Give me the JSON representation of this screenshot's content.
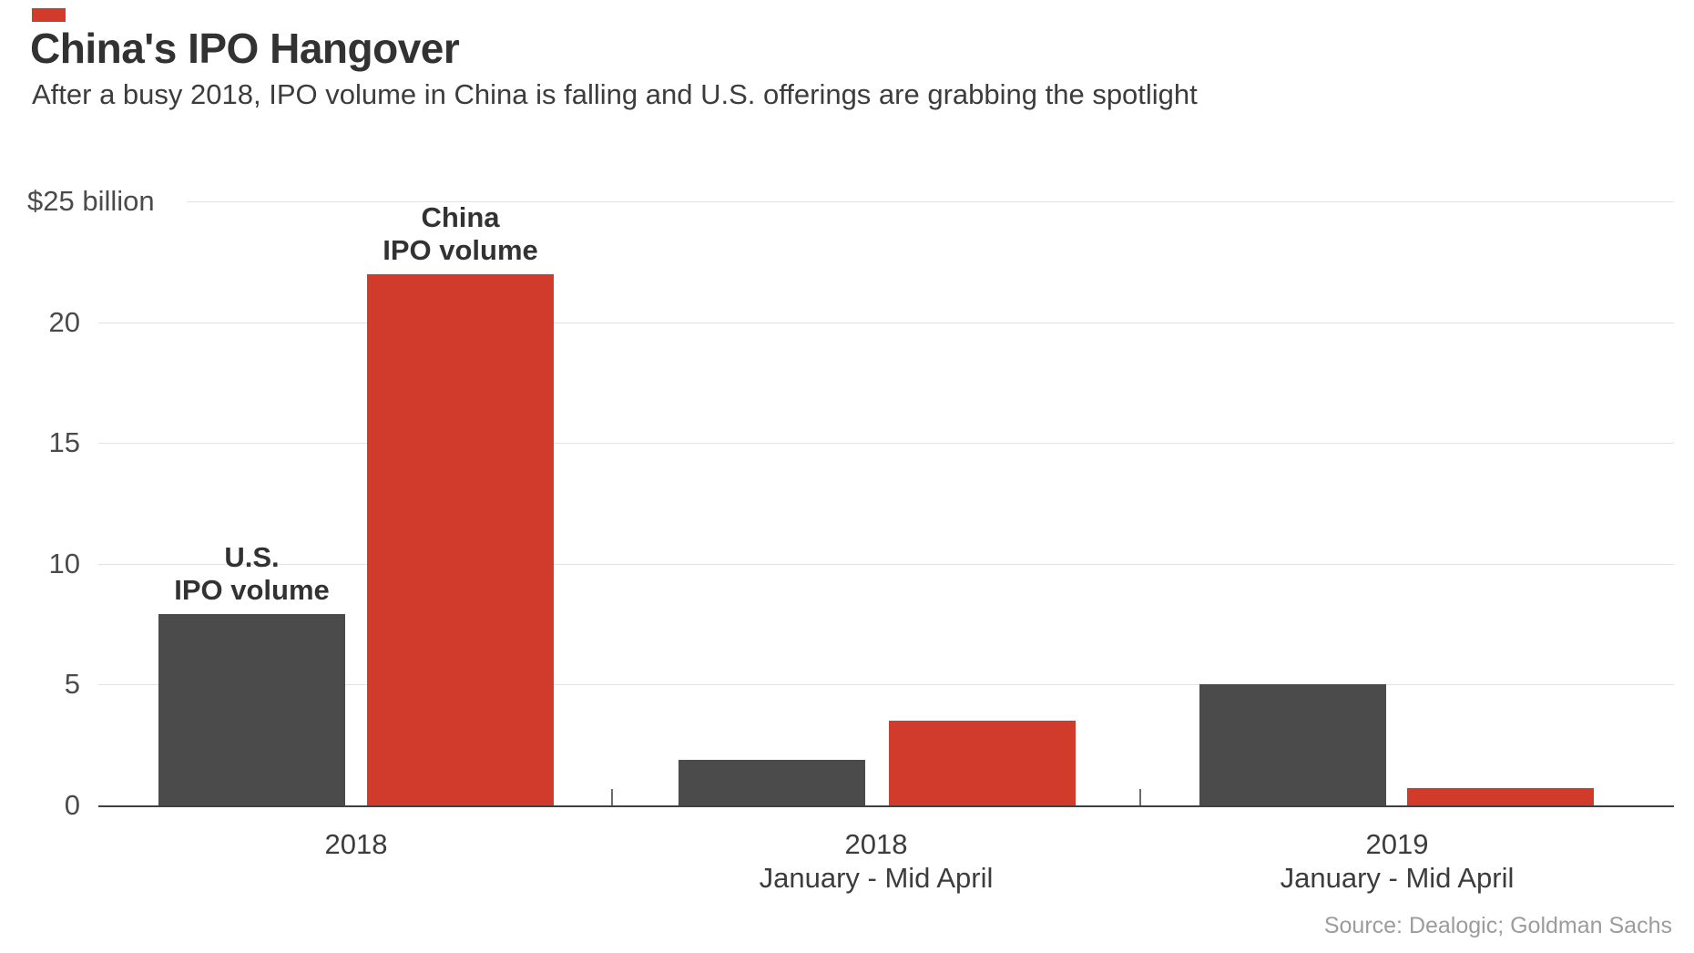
{
  "brand": {
    "mark_color": "#d13b2c"
  },
  "header": {
    "title": "China's IPO Hangover",
    "subtitle": "After a busy 2018, IPO volume in China is falling and U.S. offerings are grabbing the spotlight"
  },
  "footer": {
    "source": "Source: Dealogic; Goldman Sachs"
  },
  "colors": {
    "us_bar": "#4b4b4b",
    "china_bar": "#d13b2c",
    "gridline": "#e2e2e2",
    "axis": "#414141"
  },
  "chart_data": {
    "type": "bar",
    "title": "China's IPO Hangover",
    "subtitle": "After a busy 2018, IPO volume in China is falling and U.S. offerings are grabbing the spotlight",
    "unit": "$ billion",
    "categories": [
      "2018",
      "2018 January - Mid April",
      "2019 January - Mid April"
    ],
    "category_label_lines": [
      [
        "2018"
      ],
      [
        "2018",
        "January - Mid April"
      ],
      [
        "2019",
        "January - Mid April"
      ]
    ],
    "series": [
      {
        "key": "us",
        "name": "U.S. IPO volume",
        "color": "#4b4b4b",
        "values": [
          7.9,
          1.9,
          5.0
        ]
      },
      {
        "key": "china",
        "name": "China IPO volume",
        "color": "#d13b2c",
        "values": [
          22.0,
          3.5,
          0.7
        ]
      }
    ],
    "bar_annotations": [
      {
        "series": 0,
        "group": 0,
        "lines": [
          "U.S.",
          "IPO volume"
        ]
      },
      {
        "series": 1,
        "group": 0,
        "lines": [
          "China",
          "IPO volume"
        ]
      }
    ],
    "ylim": [
      0,
      25
    ],
    "yticks": [
      {
        "value": 25,
        "label": "$25 billion"
      },
      {
        "value": 20,
        "label": "20"
      },
      {
        "value": 15,
        "label": "15"
      },
      {
        "value": 10,
        "label": "10"
      },
      {
        "value": 5,
        "label": "5"
      },
      {
        "value": 0,
        "label": "0"
      }
    ],
    "grid": "horizontal",
    "legend_position": "none",
    "source": "Source: Dealogic; Goldman Sachs"
  }
}
